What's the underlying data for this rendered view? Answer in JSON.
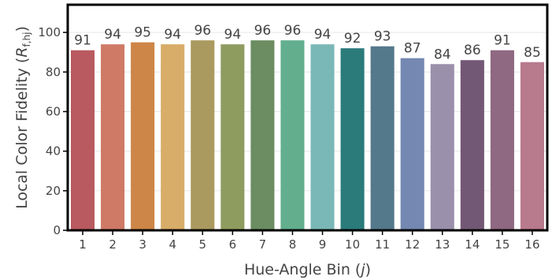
{
  "chart_data": {
    "type": "bar",
    "categories": [
      "1",
      "2",
      "3",
      "4",
      "5",
      "6",
      "7",
      "8",
      "9",
      "10",
      "11",
      "12",
      "13",
      "14",
      "15",
      "16"
    ],
    "values": [
      91,
      94,
      95,
      94,
      96,
      94,
      96,
      96,
      94,
      92,
      93,
      87,
      84,
      86,
      91,
      85
    ],
    "data_labels": [
      "91",
      "94",
      "95",
      "94",
      "96",
      "94",
      "96",
      "96",
      "94",
      "92",
      "93",
      "87",
      "84",
      "86",
      "91",
      "85"
    ],
    "bar_colors": [
      "#b85a5f",
      "#cf7a66",
      "#cd8647",
      "#d8ad69",
      "#ab9a5f",
      "#8f9c60",
      "#6b8d61",
      "#62ae8d",
      "#7ab8b7",
      "#2b7b7b",
      "#54798b",
      "#7488b1",
      "#9a90ab",
      "#735876",
      "#8f6881",
      "#b87a8d"
    ],
    "xlabel_text": "Hue-Angle Bin (",
    "xlabel_var": "j",
    "xlabel_close": ")",
    "ylabel_text": "Local Color Fidelity (",
    "ylabel_var": "R",
    "ylabel_sub": "f,hj",
    "ylabel_close": ")",
    "yticks": [
      0,
      20,
      40,
      60,
      80,
      100
    ],
    "ylim": [
      0,
      114
    ],
    "grid": true,
    "legend": "none"
  }
}
